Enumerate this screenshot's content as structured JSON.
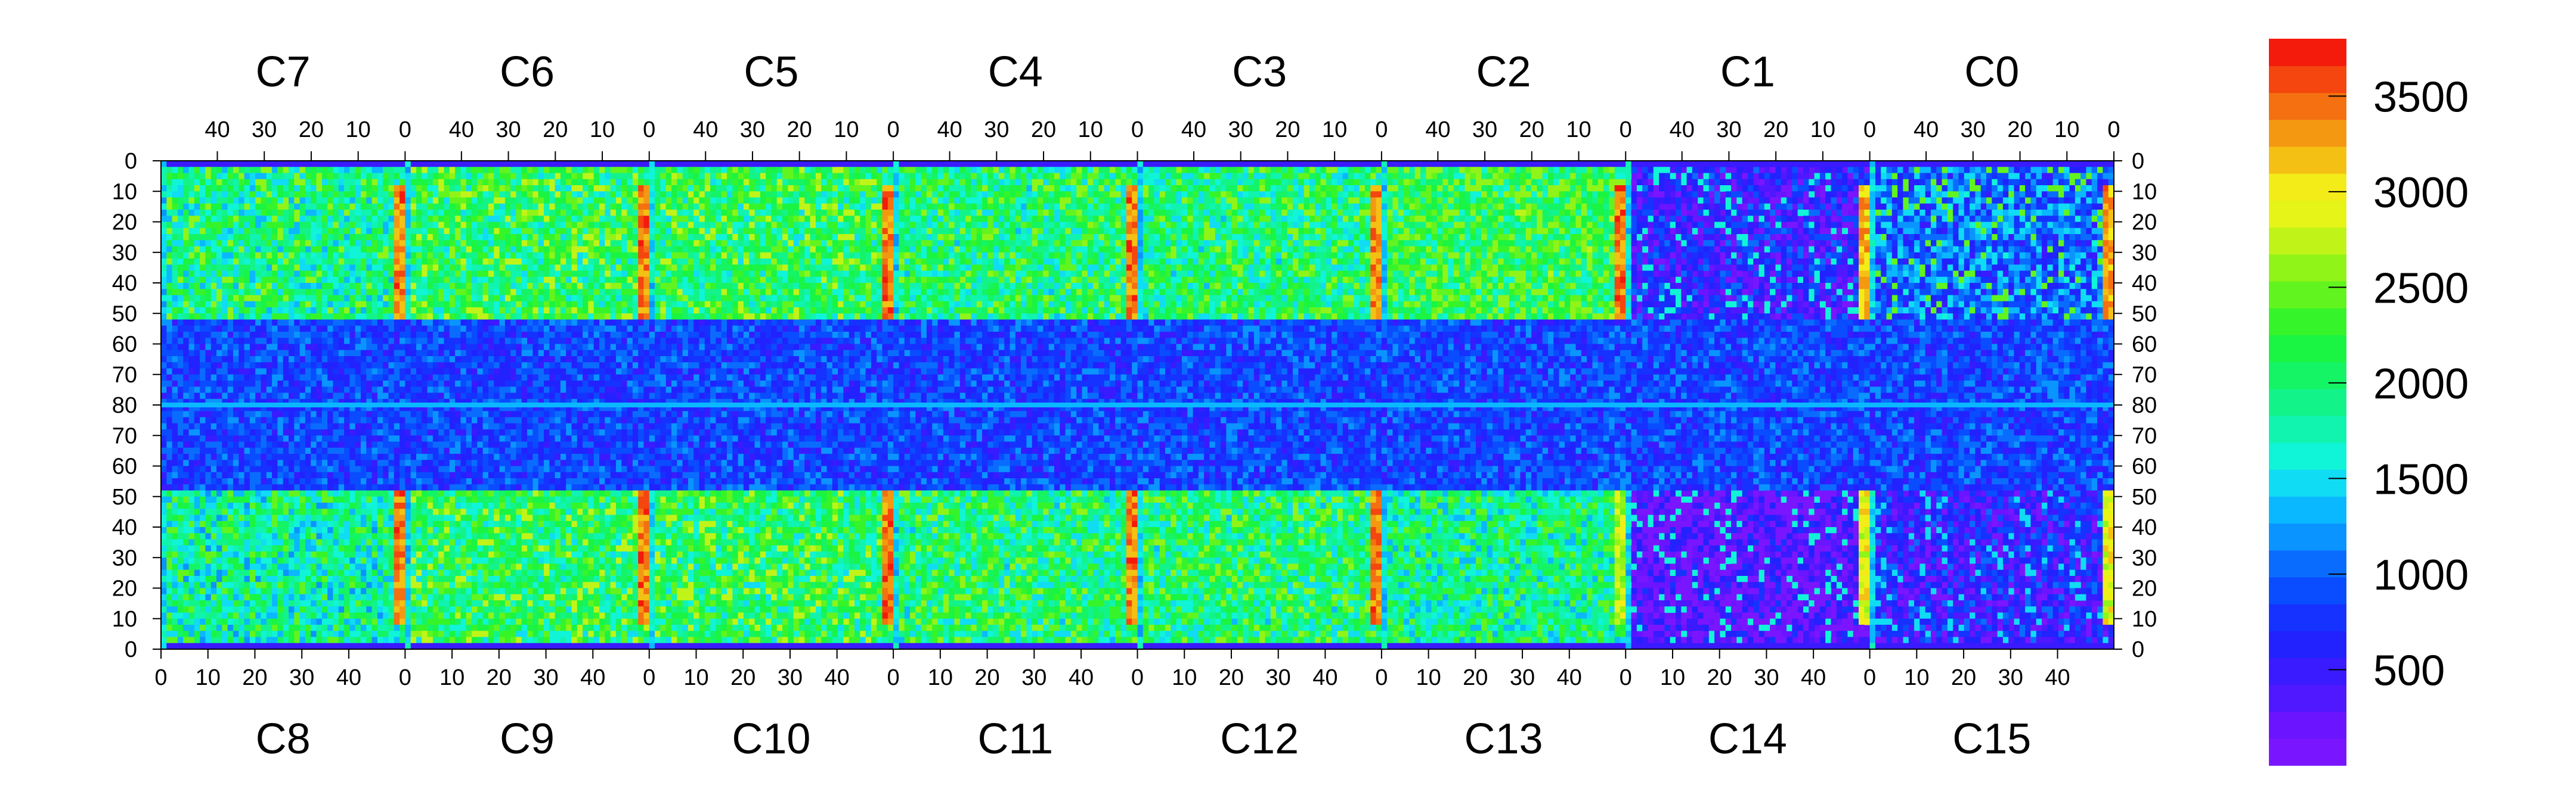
{
  "chart_data": {
    "type": "heatmap",
    "title": "",
    "xlabel": "",
    "ylabel": "",
    "top_chip_labels": [
      "C7",
      "C6",
      "C5",
      "C4",
      "C3",
      "C2",
      "C1",
      "C0"
    ],
    "bottom_chip_labels": [
      "C8",
      "C9",
      "C10",
      "C11",
      "C12",
      "C13",
      "C14",
      "C15"
    ],
    "chip_columns": 52,
    "rows_per_half": 80,
    "top_x_ticks": [
      "40",
      "30",
      "20",
      "10",
      "0"
    ],
    "bottom_x_ticks": [
      "0",
      "10",
      "20",
      "30",
      "40"
    ],
    "y_ticks_top_half": [
      "0",
      "10",
      "20",
      "30",
      "40",
      "50",
      "60",
      "70",
      "80"
    ],
    "y_ticks_bottom_half": [
      "70",
      "60",
      "50",
      "40",
      "30",
      "20",
      "10",
      "0"
    ],
    "zlim": [
      0,
      3800
    ],
    "colorbar_ticks": [
      {
        "value": 500,
        "label": "500"
      },
      {
        "value": 1000,
        "label": "1000"
      },
      {
        "value": 1500,
        "label": "1500"
      },
      {
        "value": 2000,
        "label": "2000"
      },
      {
        "value": 2500,
        "label": "2500"
      },
      {
        "value": 3000,
        "label": "3000"
      },
      {
        "value": 3500,
        "label": "3500"
      }
    ],
    "palette": [
      "#7a16ff",
      "#6a14ff",
      "#5018ff",
      "#3a1aff",
      "#2222ff",
      "#1632ff",
      "#0a4cff",
      "#0a6cff",
      "#0a94ff",
      "#0ab8ff",
      "#10dcf4",
      "#10f4d8",
      "#10f4b0",
      "#12f48a",
      "#14f464",
      "#1af442",
      "#36f42a",
      "#62f41e",
      "#90f418",
      "#c0f418",
      "#e6f418",
      "#f4ec18",
      "#f4c014",
      "#f49812",
      "#f47010",
      "#f4460e",
      "#f41a0c"
    ],
    "chip_summary": [
      {
        "chip": "C0",
        "half": "top",
        "region": "C0 top",
        "typical_level": 1100,
        "high_level": 2400,
        "hot_strip_level": 3600
      },
      {
        "chip": "C1",
        "half": "top",
        "region": "C1 top",
        "typical_level": 600,
        "high_level": 1600,
        "hot_strip_level": 3500
      },
      {
        "chip": "C2",
        "half": "top",
        "region": "C2 top",
        "typical_level": 2200,
        "high_level": 2600,
        "hot_strip_level": 3700
      },
      {
        "chip": "C3",
        "half": "top",
        "region": "C3 top",
        "typical_level": 2000,
        "high_level": 2600,
        "hot_strip_level": 3700
      },
      {
        "chip": "C4",
        "half": "top",
        "region": "C4 top",
        "typical_level": 2000,
        "high_level": 2600,
        "hot_strip_level": 3700
      },
      {
        "chip": "C5",
        "half": "top",
        "region": "C5 top",
        "typical_level": 2100,
        "high_level": 2700,
        "hot_strip_level": 3700
      },
      {
        "chip": "C6",
        "half": "top",
        "region": "C6 top",
        "typical_level": 2100,
        "high_level": 2700,
        "hot_strip_level": 3700
      },
      {
        "chip": "C7",
        "half": "top",
        "region": "C7 top",
        "typical_level": 1900,
        "high_level": 2600,
        "hot_strip_level": 3700
      },
      {
        "chip": "C8",
        "half": "bottom",
        "region": "C8 bottom",
        "typical_level": 1800,
        "high_level": 2500,
        "hot_strip_level": 3700
      },
      {
        "chip": "C9",
        "half": "bottom",
        "region": "C9 bottom",
        "typical_level": 2100,
        "high_level": 2700,
        "hot_strip_level": 3700
      },
      {
        "chip": "C10",
        "half": "bottom",
        "region": "C10 bottom",
        "typical_level": 2100,
        "high_level": 2700,
        "hot_strip_level": 3700
      },
      {
        "chip": "C11",
        "half": "bottom",
        "region": "C11 bottom",
        "typical_level": 2000,
        "high_level": 2600,
        "hot_strip_level": 3700
      },
      {
        "chip": "C12",
        "half": "bottom",
        "region": "C12 bottom",
        "typical_level": 2000,
        "high_level": 2600,
        "hot_strip_level": 3700
      },
      {
        "chip": "C13",
        "half": "bottom",
        "region": "C13 bottom",
        "typical_level": 1900,
        "high_level": 2500,
        "hot_strip_level": 3000
      },
      {
        "chip": "C14",
        "half": "bottom",
        "region": "C14 bottom",
        "typical_level": 300,
        "high_level": 1600,
        "hot_strip_level": 3200
      },
      {
        "chip": "C15",
        "half": "bottom",
        "region": "C15 bottom",
        "typical_level": 600,
        "high_level": 1500,
        "hot_strip_level": 3200
      }
    ]
  }
}
